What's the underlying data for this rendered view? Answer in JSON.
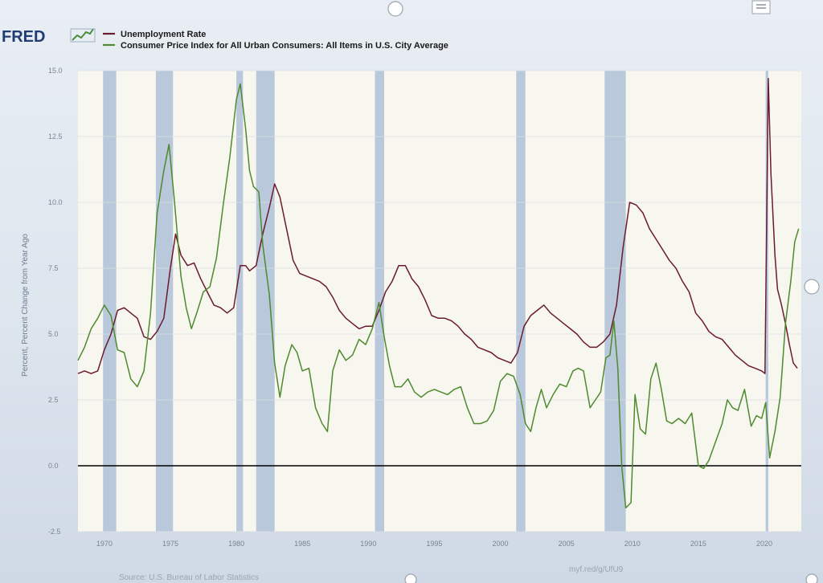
{
  "brand": {
    "name": "FRED"
  },
  "legend": [
    {
      "label": "Unemployment Rate",
      "color": "#6b1b2e"
    },
    {
      "label": "Consumer Price Index for All Urban Consumers: All Items in U.S. City Average",
      "color": "#4f8a2f"
    }
  ],
  "footer": {
    "source": "Source: U.S. Bureau of Labor Statistics",
    "link": "myf.red/g/UfU9"
  },
  "colors": {
    "recession": "#b9c8da",
    "plot_bg": "#f7f6ef",
    "zero_line": "#000000"
  },
  "chart_data": {
    "type": "line",
    "ylabel": "Percent, Percent Change from Year Ago",
    "xlim": [
      1968.0,
      2022.8
    ],
    "ylim": [
      -2.5,
      15.0
    ],
    "y_ticks": [
      -2.5,
      0.0,
      2.5,
      5.0,
      7.5,
      10.0,
      12.5,
      15.0
    ],
    "y_tick_labels": [
      "-2.5",
      "0.0",
      "2.5",
      "5.0",
      "7.5",
      "10.0",
      "12.5",
      "15.0"
    ],
    "x_ticks": [
      1970,
      1975,
      1980,
      1985,
      1990,
      1995,
      2000,
      2005,
      2010,
      2015,
      2020
    ],
    "grid": true,
    "legend_position": "top-left",
    "recessions": [
      [
        1969.9,
        1970.9
      ],
      [
        1973.9,
        1975.2
      ],
      [
        1980.0,
        1980.5
      ],
      [
        1981.5,
        1982.9
      ],
      [
        1990.5,
        1991.2
      ],
      [
        2001.2,
        2001.9
      ],
      [
        2007.9,
        2009.5
      ],
      [
        2020.1,
        2020.3
      ]
    ],
    "series": [
      {
        "name": "Unemployment Rate",
        "color": "#6b1b2e",
        "x": [
          1968.0,
          1968.5,
          1969.0,
          1969.5,
          1970.0,
          1970.5,
          1971.0,
          1971.5,
          1972.0,
          1972.5,
          1973.0,
          1973.5,
          1974.0,
          1974.5,
          1975.0,
          1975.4,
          1975.8,
          1976.3,
          1976.8,
          1977.3,
          1977.8,
          1978.3,
          1978.8,
          1979.3,
          1979.8,
          1980.3,
          1980.7,
          1981.0,
          1981.5,
          1982.0,
          1982.5,
          1982.9,
          1983.3,
          1983.8,
          1984.3,
          1984.8,
          1985.3,
          1985.8,
          1986.3,
          1986.8,
          1987.3,
          1987.8,
          1988.3,
          1988.8,
          1989.3,
          1989.8,
          1990.3,
          1990.8,
          1991.3,
          1991.8,
          1992.3,
          1992.8,
          1993.3,
          1993.8,
          1994.3,
          1994.8,
          1995.3,
          1995.8,
          1996.3,
          1996.8,
          1997.3,
          1997.8,
          1998.3,
          1998.8,
          1999.3,
          1999.8,
          2000.3,
          2000.8,
          2001.3,
          2001.8,
          2002.3,
          2002.8,
          2003.3,
          2003.8,
          2004.3,
          2004.8,
          2005.3,
          2005.8,
          2006.3,
          2006.8,
          2007.3,
          2007.8,
          2008.3,
          2008.8,
          2009.3,
          2009.8,
          2010.3,
          2010.8,
          2011.3,
          2011.8,
          2012.3,
          2012.8,
          2013.3,
          2013.8,
          2014.3,
          2014.8,
          2015.3,
          2015.8,
          2016.3,
          2016.8,
          2017.3,
          2017.8,
          2018.3,
          2018.8,
          2019.3,
          2019.8,
          2020.05,
          2020.3,
          2020.5,
          2020.8,
          2021.0,
          2021.3,
          2021.6,
          2021.9,
          2022.2,
          2022.5
        ],
        "y": [
          3.5,
          3.6,
          3.5,
          3.6,
          4.4,
          5.0,
          5.9,
          6.0,
          5.8,
          5.6,
          4.9,
          4.8,
          5.1,
          5.6,
          7.5,
          8.8,
          8.0,
          7.6,
          7.7,
          7.1,
          6.6,
          6.1,
          6.0,
          5.8,
          6.0,
          7.6,
          7.6,
          7.4,
          7.6,
          8.8,
          9.8,
          10.7,
          10.2,
          9.0,
          7.8,
          7.3,
          7.2,
          7.1,
          7.0,
          6.8,
          6.4,
          5.9,
          5.6,
          5.4,
          5.2,
          5.3,
          5.3,
          5.9,
          6.6,
          7.0,
          7.6,
          7.6,
          7.1,
          6.8,
          6.3,
          5.7,
          5.6,
          5.6,
          5.5,
          5.3,
          5.0,
          4.8,
          4.5,
          4.4,
          4.3,
          4.1,
          4.0,
          3.9,
          4.3,
          5.3,
          5.7,
          5.9,
          6.1,
          5.8,
          5.6,
          5.4,
          5.2,
          5.0,
          4.7,
          4.5,
          4.5,
          4.7,
          5.0,
          6.1,
          8.3,
          10.0,
          9.9,
          9.6,
          9.0,
          8.6,
          8.2,
          7.8,
          7.5,
          7.0,
          6.6,
          5.8,
          5.5,
          5.1,
          4.9,
          4.8,
          4.5,
          4.2,
          4.0,
          3.8,
          3.7,
          3.6,
          3.5,
          14.7,
          11.1,
          8.0,
          6.7,
          6.1,
          5.4,
          4.6,
          3.9,
          3.7
        ]
      },
      {
        "name": "Consumer Price Index for All Urban Consumers: All Items in U.S. City Average",
        "color": "#4f8a2f",
        "x": [
          1968.0,
          1968.5,
          1969.0,
          1969.5,
          1970.0,
          1970.5,
          1971.0,
          1971.5,
          1972.0,
          1972.5,
          1973.0,
          1973.5,
          1974.0,
          1974.5,
          1974.9,
          1975.3,
          1975.8,
          1976.2,
          1976.6,
          1977.0,
          1977.5,
          1978.0,
          1978.5,
          1979.0,
          1979.5,
          1980.0,
          1980.3,
          1980.7,
          1981.0,
          1981.3,
          1981.7,
          1982.0,
          1982.5,
          1982.9,
          1983.3,
          1983.7,
          1984.2,
          1984.6,
          1985.0,
          1985.5,
          1986.0,
          1986.5,
          1986.9,
          1987.3,
          1987.8,
          1988.3,
          1988.8,
          1989.3,
          1989.8,
          1990.3,
          1990.8,
          1991.2,
          1991.6,
          1992.0,
          1992.5,
          1993.0,
          1993.5,
          1994.0,
          1994.5,
          1995.0,
          1995.5,
          1996.0,
          1996.5,
          1997.0,
          1997.5,
          1998.0,
          1998.5,
          1999.0,
          1999.5,
          2000.0,
          2000.5,
          2001.0,
          2001.5,
          2001.9,
          2002.3,
          2002.7,
          2003.1,
          2003.5,
          2004.0,
          2004.5,
          2005.0,
          2005.5,
          2005.9,
          2006.3,
          2006.8,
          2007.2,
          2007.6,
          2008.0,
          2008.3,
          2008.6,
          2008.9,
          2009.2,
          2009.5,
          2009.9,
          2010.2,
          2010.6,
          2011.0,
          2011.4,
          2011.8,
          2012.2,
          2012.6,
          2013.0,
          2013.5,
          2014.0,
          2014.5,
          2015.0,
          2015.4,
          2015.8,
          2016.3,
          2016.8,
          2017.2,
          2017.6,
          2018.0,
          2018.5,
          2019.0,
          2019.4,
          2019.8,
          2020.1,
          2020.4,
          2020.8,
          2021.2,
          2021.6,
          2022.0,
          2022.3,
          2022.6
        ],
        "y": [
          4.0,
          4.5,
          5.2,
          5.6,
          6.1,
          5.7,
          4.4,
          4.3,
          3.3,
          3.0,
          3.6,
          5.8,
          9.6,
          11.2,
          12.2,
          10.1,
          7.2,
          6.0,
          5.2,
          5.8,
          6.6,
          6.8,
          7.9,
          9.9,
          11.7,
          13.9,
          14.5,
          12.8,
          11.2,
          10.6,
          10.4,
          8.4,
          6.5,
          3.9,
          2.6,
          3.8,
          4.6,
          4.3,
          3.6,
          3.7,
          2.2,
          1.6,
          1.3,
          3.6,
          4.4,
          4.0,
          4.2,
          4.8,
          4.6,
          5.2,
          6.2,
          4.9,
          3.8,
          3.0,
          3.0,
          3.3,
          2.8,
          2.6,
          2.8,
          2.9,
          2.8,
          2.7,
          2.9,
          3.0,
          2.2,
          1.6,
          1.6,
          1.7,
          2.1,
          3.2,
          3.5,
          3.4,
          2.7,
          1.6,
          1.3,
          2.2,
          2.9,
          2.2,
          2.7,
          3.1,
          3.0,
          3.6,
          3.7,
          3.6,
          2.2,
          2.5,
          2.8,
          4.1,
          4.2,
          5.5,
          3.7,
          0.0,
          -1.6,
          -1.4,
          2.7,
          1.4,
          1.2,
          3.3,
          3.9,
          2.9,
          1.7,
          1.6,
          1.8,
          1.6,
          2.0,
          0.0,
          -0.1,
          0.2,
          0.9,
          1.6,
          2.5,
          2.2,
          2.1,
          2.9,
          1.5,
          1.9,
          1.8,
          2.4,
          0.3,
          1.3,
          2.6,
          5.4,
          7.0,
          8.5,
          9.0
        ]
      }
    ]
  }
}
